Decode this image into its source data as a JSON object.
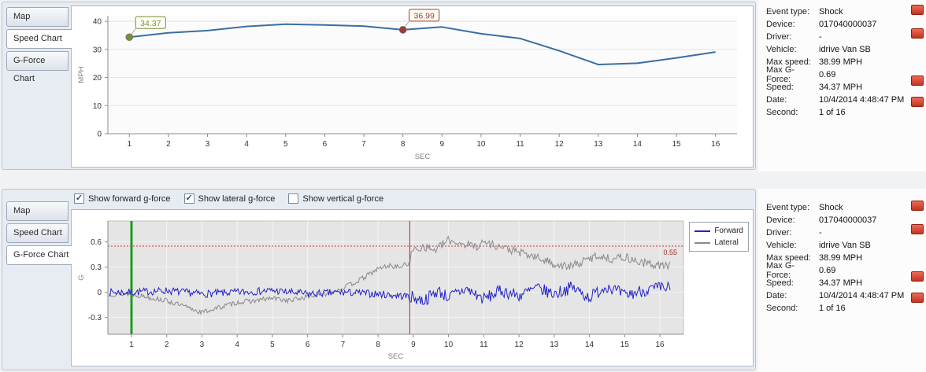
{
  "speed_panel": {
    "tabs": [
      {
        "label": "Map",
        "active": false
      },
      {
        "label": "Speed Chart",
        "active": true
      },
      {
        "label": "G-Force Chart",
        "active": false
      }
    ]
  },
  "gforce_panel": {
    "tabs": [
      {
        "label": "Map",
        "active": false
      },
      {
        "label": "Speed Chart",
        "active": false
      },
      {
        "label": "G-Force Chart",
        "active": true
      }
    ],
    "checkboxes": [
      {
        "label": "Show forward g-force",
        "checked": true
      },
      {
        "label": "Show lateral g-force",
        "checked": true
      },
      {
        "label": "Show vertical g-force",
        "checked": false
      }
    ]
  },
  "event_info": {
    "rows": [
      {
        "label": "Event type:",
        "value": "Shock"
      },
      {
        "label": "Device:",
        "value": "017040000037"
      },
      {
        "label": "Driver:",
        "value": "-"
      },
      {
        "label": "Vehicle:",
        "value": "idrive Van SB"
      },
      {
        "label": "Max speed:",
        "value": "38.99 MPH"
      },
      {
        "label": "Max G-Force:",
        "value": "0.69"
      },
      {
        "label": "Speed:",
        "value": "34.37 MPH"
      },
      {
        "label": "Date:",
        "value": "10/4/2014 4:48:47 PM"
      },
      {
        "label": "Second:",
        "value": "1 of 16"
      }
    ]
  },
  "chart_data": [
    {
      "id": "speed",
      "type": "line",
      "title": "",
      "xlabel": "SEC",
      "ylabel": "MPH",
      "x": [
        1,
        2,
        3,
        4,
        5,
        6,
        7,
        8,
        9,
        10,
        11,
        12,
        13,
        14,
        15,
        16
      ],
      "values": [
        34.37,
        35.9,
        36.7,
        38.2,
        38.99,
        38.7,
        38.3,
        36.99,
        38.0,
        35.6,
        33.9,
        29.5,
        24.6,
        25.1,
        27.0,
        29.1
      ],
      "ylim": [
        0,
        42
      ],
      "y_ticks": [
        0,
        10,
        20,
        30,
        40
      ],
      "grid": true,
      "line_color": "#3a6ea5",
      "annotations": [
        {
          "x": 1,
          "value": 34.37,
          "label": "34.37",
          "color": "#7e8c3a"
        },
        {
          "x": 8,
          "value": 36.99,
          "label": "36.99",
          "color": "#9c3c38"
        }
      ]
    },
    {
      "id": "gforce",
      "type": "line",
      "xlabel": "SEC",
      "ylabel": "G",
      "x_ticks": [
        1,
        2,
        3,
        4,
        5,
        6,
        7,
        8,
        9,
        10,
        11,
        12,
        13,
        14,
        15,
        16
      ],
      "y_ticks": [
        -0.3,
        0,
        0.3,
        0.6
      ],
      "ylim": [
        -0.5,
        0.85
      ],
      "grid": true,
      "legend_position": "right",
      "threshold": {
        "value": 0.55,
        "label": "0.55",
        "color": "#cc3333"
      },
      "markers": [
        {
          "name": "event-start-line",
          "x": 1,
          "color": "#1f9a1f",
          "width": 3
        },
        {
          "name": "impact-line",
          "x": 8.9,
          "color": "#cc2222",
          "width": 1
        }
      ],
      "series": [
        {
          "name": "Forward",
          "color": "#2222cc",
          "noise": 0.045,
          "keypoints_x": [
            1,
            2,
            3,
            4,
            5,
            6,
            7,
            8,
            8.9,
            9.3,
            9.7,
            10,
            10.5,
            11,
            11.5,
            12,
            12.5,
            13,
            13.5,
            14,
            14.5,
            15,
            15.5,
            16
          ],
          "keypoints_y": [
            0,
            0.02,
            -0.02,
            0,
            0.02,
            -0.02,
            0,
            -0.02,
            -0.05,
            -0.1,
            0.02,
            -0.06,
            0.04,
            -0.08,
            0.02,
            -0.04,
            0.05,
            -0.02,
            0.06,
            -0.06,
            0.08,
            -0.04,
            0.02,
            0.05
          ]
        },
        {
          "name": "Lateral",
          "color": "#8a8a8a",
          "noise": 0.03,
          "keypoints_x": [
            1,
            1.5,
            2,
            2.5,
            3,
            3.5,
            4,
            4.5,
            5,
            5.5,
            6,
            6.5,
            7,
            7.5,
            8,
            8.3,
            8.6,
            8.85,
            9.0,
            9.3,
            9.6,
            10,
            10.4,
            10.8,
            11,
            11.4,
            11.8,
            12.2,
            12.6,
            13,
            13.4,
            13.8,
            14.2,
            14.6,
            15,
            15.4,
            16
          ],
          "keypoints_y": [
            -0.02,
            -0.06,
            -0.1,
            -0.17,
            -0.24,
            -0.18,
            -0.12,
            -0.1,
            -0.07,
            -0.1,
            -0.05,
            -0.02,
            0.05,
            0.15,
            0.28,
            0.32,
            0.3,
            0.34,
            0.5,
            0.55,
            0.5,
            0.62,
            0.58,
            0.55,
            0.6,
            0.55,
            0.5,
            0.45,
            0.4,
            0.34,
            0.3,
            0.36,
            0.44,
            0.4,
            0.42,
            0.36,
            0.32
          ]
        }
      ]
    }
  ]
}
